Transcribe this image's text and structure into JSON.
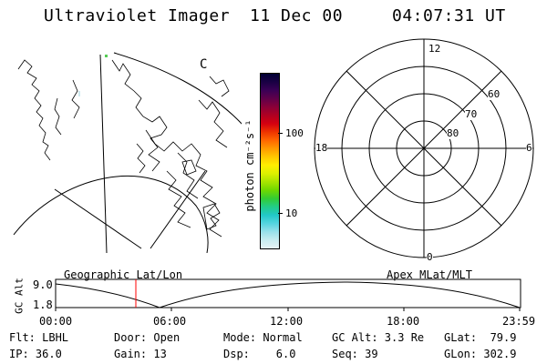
{
  "header": {
    "instrument": "Ultraviolet Imager",
    "date": "11 Dec 00",
    "time": "04:07:31 UT"
  },
  "map_panel": {
    "corner_label": "C"
  },
  "colorbar": {
    "unit_label": "photon cm⁻²s⁻¹",
    "ticks": [
      "100",
      "10"
    ],
    "colors": [
      "#000033",
      "#1a0044",
      "#3a0055",
      "#60004a",
      "#8a0038",
      "#b00022",
      "#d40010",
      "#ee3300",
      "#ff6600",
      "#ff9900",
      "#ffc800",
      "#ffee00",
      "#dcf000",
      "#a8e400",
      "#6fd800",
      "#33cc33",
      "#22cc88",
      "#22c8c8",
      "#55d4e0",
      "#99e0ea",
      "#c8ecf0",
      "#e6f4f6"
    ]
  },
  "polar_plot": {
    "mlt_labels": {
      "top": "12",
      "left": "18",
      "right": "6",
      "bottom": "0"
    },
    "lat_labels": [
      "60",
      "70",
      "80"
    ]
  },
  "timeline": {
    "left_title": "Geographic Lat/Lon",
    "right_title": "Apex MLat/MLT",
    "ylabel": "GC Alt",
    "yticks": [
      "9.0",
      "1.8"
    ],
    "xticks": [
      "00:00",
      "06:00",
      "12:00",
      "18:00",
      "23:59"
    ],
    "current_marker_time": "04:07"
  },
  "footer": {
    "filter": "Flt: LBHL",
    "ip": "IP: 36.0",
    "door": "Door: Open",
    "gain": "Gain: 13",
    "mode": "Mode: Normal",
    "dsp": "Dsp:    6.0",
    "gc_alt": "GC Alt: 3.3 Re",
    "seq": "Seq: 39",
    "glat": "GLat:  79.9",
    "glon": "GLon: 302.9"
  }
}
